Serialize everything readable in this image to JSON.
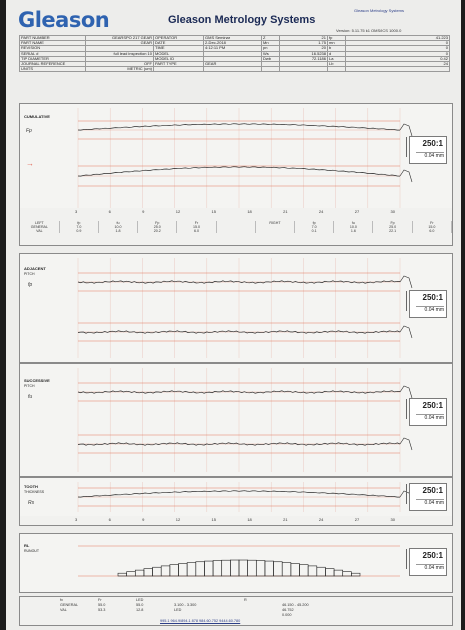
{
  "header": {
    "brand": "Gleason",
    "title": "Gleason Metrology Systems",
    "logo_small": "Gleason Metrology Systems",
    "version": "Version: 5.11.75 k1 OMS/ICS 1000.0"
  },
  "info_rows": [
    [
      "PART NUMBER",
      "GEARSPO 217 GEAR",
      "OPERATOR",
      "GMS Seminar",
      "Z",
      "21",
      "fp",
      "41.223"
    ],
    [
      "PART NAME",
      "GEAR",
      "DATE",
      "2-Dec-2018",
      "Mn",
      "1.75",
      "mn",
      "0"
    ],
    [
      "REVISION",
      "",
      "TIME",
      "4:12:11 PM",
      "pn",
      "20",
      "b",
      "0"
    ],
    [
      "SERIAL #",
      "full lead inspection 10",
      "MODEL",
      "",
      "Ws",
      "16.5238",
      "d",
      "0"
    ],
    [
      "TIP DIAMETER",
      "",
      "MODEL ID",
      "",
      "Dwb",
      "72.1186",
      "La",
      "0.42"
    ],
    [
      "JOURNAL REFERENCE",
      "OFF",
      "PART TYPE",
      "GEAR",
      "",
      "",
      "Lb",
      "24"
    ],
    [
      "UNITS",
      "METRIC (um)",
      "",
      "",
      "",
      "",
      "",
      ""
    ]
  ],
  "panels": [
    {
      "label": "CUMULATIVE",
      "sub": "",
      "symbol": "Fp",
      "mag": "250:1",
      "mm": "0.04 mm"
    },
    {
      "label": "ADJACENT",
      "sub": "PITCH",
      "symbol": "fp",
      "mag": "250:1",
      "mm": "0.04 mm"
    },
    {
      "label": "SUCCESSIVE",
      "sub": "PITCH",
      "symbol": "fu",
      "mag": "250:1",
      "mm": "0.04 mm"
    },
    {
      "label": "TOOTH",
      "sub": "THICKNESS",
      "symbol": "Rs",
      "mag": "250:1",
      "mm": "0.04 mm"
    },
    {
      "label": "RL",
      "sub": "RUNOUT",
      "symbol": "",
      "mag": "250:1",
      "mm": "0.04 mm"
    }
  ],
  "side_labels": {
    "left": "LEFT",
    "right": "RIGHT"
  },
  "ticks": [
    "3",
    "6",
    "9",
    "12",
    "15",
    "18",
    "21",
    "24",
    "27",
    "30"
  ],
  "strip_rows": [
    [
      "LEFT",
      "fp",
      "fu",
      "Fp",
      "Fr",
      "",
      "RIGHT",
      "fp",
      "fu",
      "Fp",
      "Fr"
    ],
    [
      "GENERAL",
      "7.0",
      "10.0",
      "25.0",
      "15.0",
      "",
      "",
      "7.0",
      "10.0",
      "25.0",
      "15.0"
    ],
    [
      "VAL",
      "0.9",
      "1.8",
      "20.2",
      "6.0",
      "",
      "",
      "0.1",
      "1.6",
      "22.1",
      "6.0"
    ]
  ],
  "bottom": {
    "row1": [
      "fx",
      "Fr",
      "LED",
      "",
      "R",
      ""
    ],
    "row2": [
      "GENERAL",
      "55.0",
      "55.0",
      "3.100 - 3.300",
      "",
      "46.150 - 45.200"
    ],
    "row3": [
      "VAL",
      "53.3",
      "12.8",
      "LED",
      "",
      "46.752"
    ],
    "row4": [
      "",
      "",
      "",
      "",
      "",
      "0.000"
    ],
    "totals": "995.1 964.9/894.1 878  984.60.752  9444.60.780"
  }
}
